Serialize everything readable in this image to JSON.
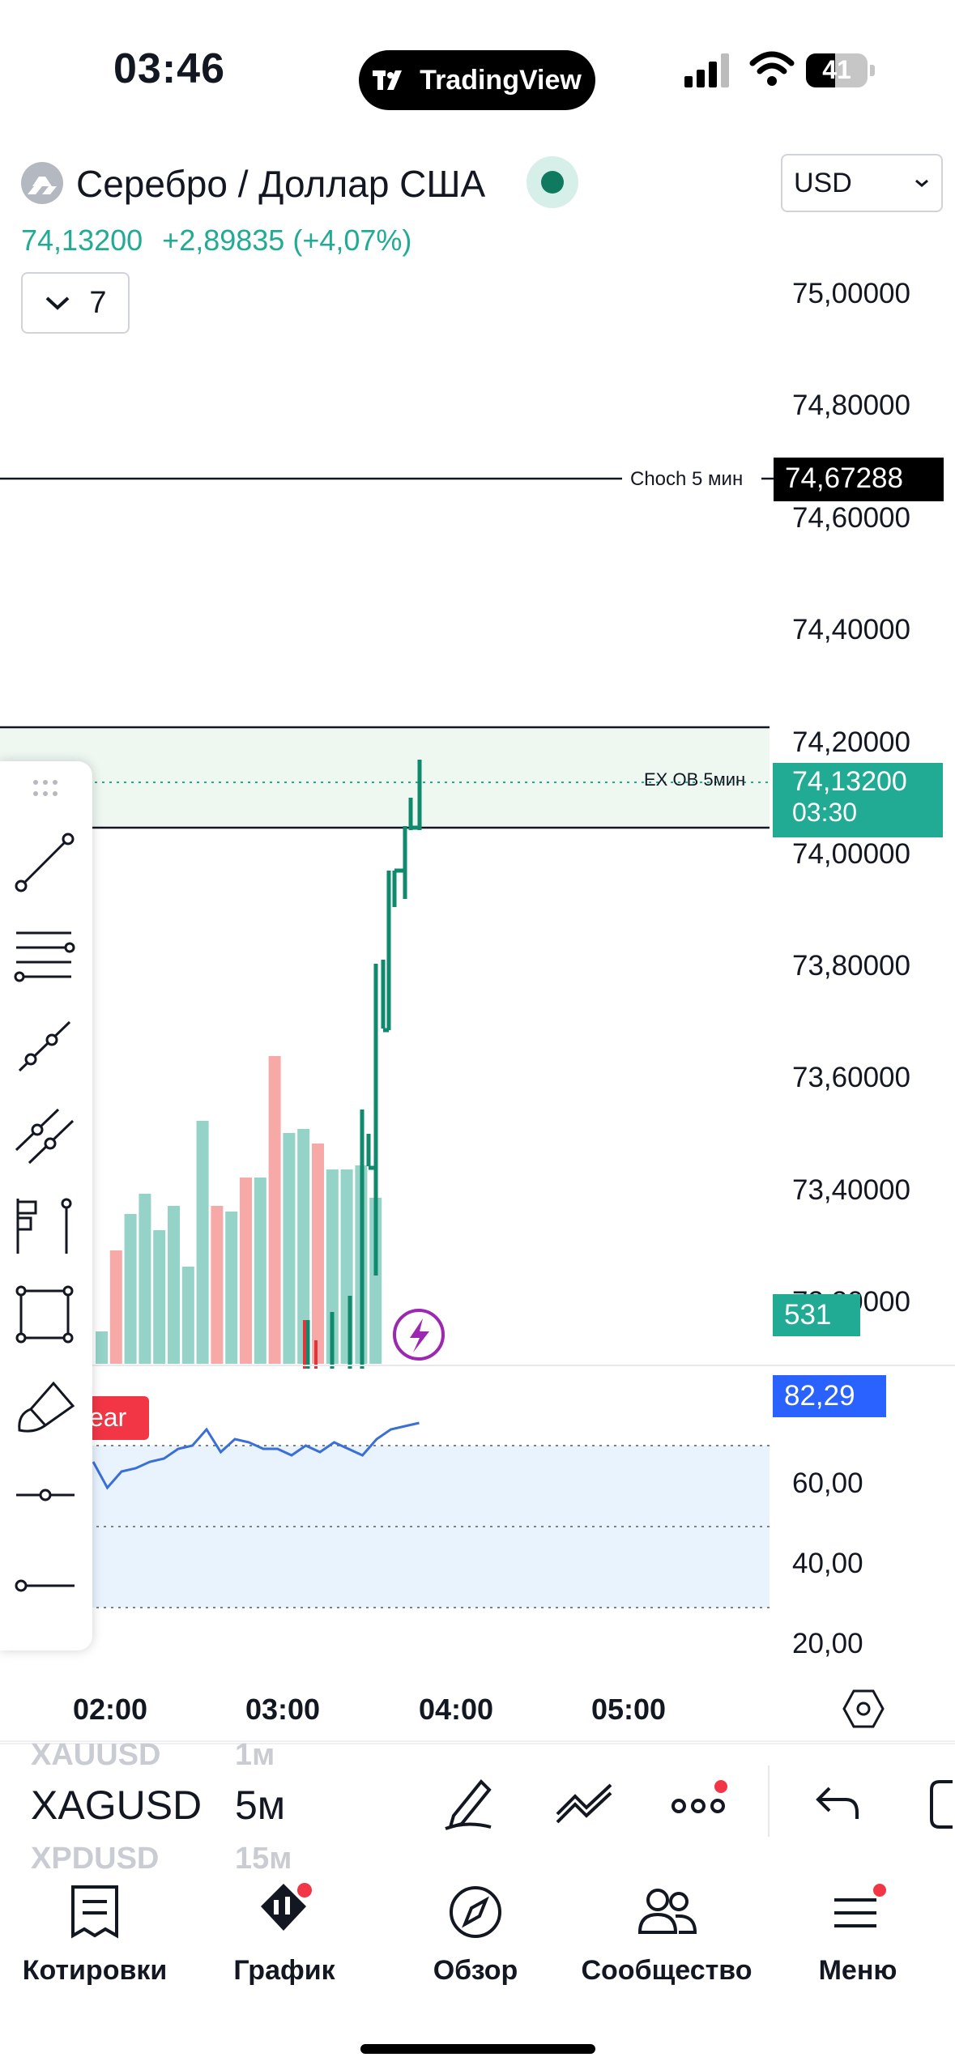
{
  "status_bar": {
    "time": "03:46",
    "battery": "41",
    "brand": "TradingView"
  },
  "header": {
    "title": "Серебро / Доллар США",
    "currency": "USD",
    "price": "74,13200",
    "change": "+2,89835 (+4,07%)",
    "indicators_count": "7"
  },
  "price_axis": [
    "75,00000",
    "74,80000",
    "74,60000",
    "74,40000",
    "74,20000",
    "74,00000",
    "73,80000",
    "73,60000",
    "73,40000",
    "73,20000"
  ],
  "lines": {
    "choch_label": "Choch 5 мин",
    "choch_value": "74,67288",
    "ob_label": "EX OB 5мин"
  },
  "current": {
    "price": "74,13200",
    "countdown": "03:30",
    "volume": "531"
  },
  "indicator": {
    "tag": "ear",
    "value": "82,29",
    "levels": [
      "60,00",
      "40,00",
      "20,00"
    ]
  },
  "time_axis": [
    "02:00",
    "03:00",
    "04:00",
    "05:00"
  ],
  "bottom": {
    "symbols": [
      "XAUUSD",
      "XAGUSD",
      "XPDUSD"
    ],
    "intervals": [
      "1м",
      "5м",
      "15м"
    ]
  },
  "nav": [
    "Котировки",
    "График",
    "Обзор",
    "Сообщество",
    "Меню"
  ],
  "colors": {
    "up": "#22ab94",
    "down": "#f7a9a7",
    "accent": "#2962ff",
    "zone": "#eef8f1",
    "band": "#e8f3fd"
  },
  "chart_data": {
    "type": "bar",
    "volume_heights": [
      40,
      140,
      185,
      210,
      165,
      195,
      120,
      300,
      195,
      188,
      230,
      230,
      380,
      285,
      290,
      272,
      240,
      240,
      245,
      205
    ],
    "volume_up": [
      true,
      false,
      true,
      true,
      true,
      true,
      true,
      true,
      false,
      true,
      false,
      true,
      false,
      true,
      true,
      false,
      true,
      true,
      true,
      true
    ],
    "rsi": [
      70,
      62,
      67,
      68,
      70,
      71,
      74,
      75,
      80,
      73,
      77,
      76,
      74,
      74,
      72,
      75,
      73,
      76,
      74,
      72,
      77,
      80,
      81,
      82
    ]
  }
}
